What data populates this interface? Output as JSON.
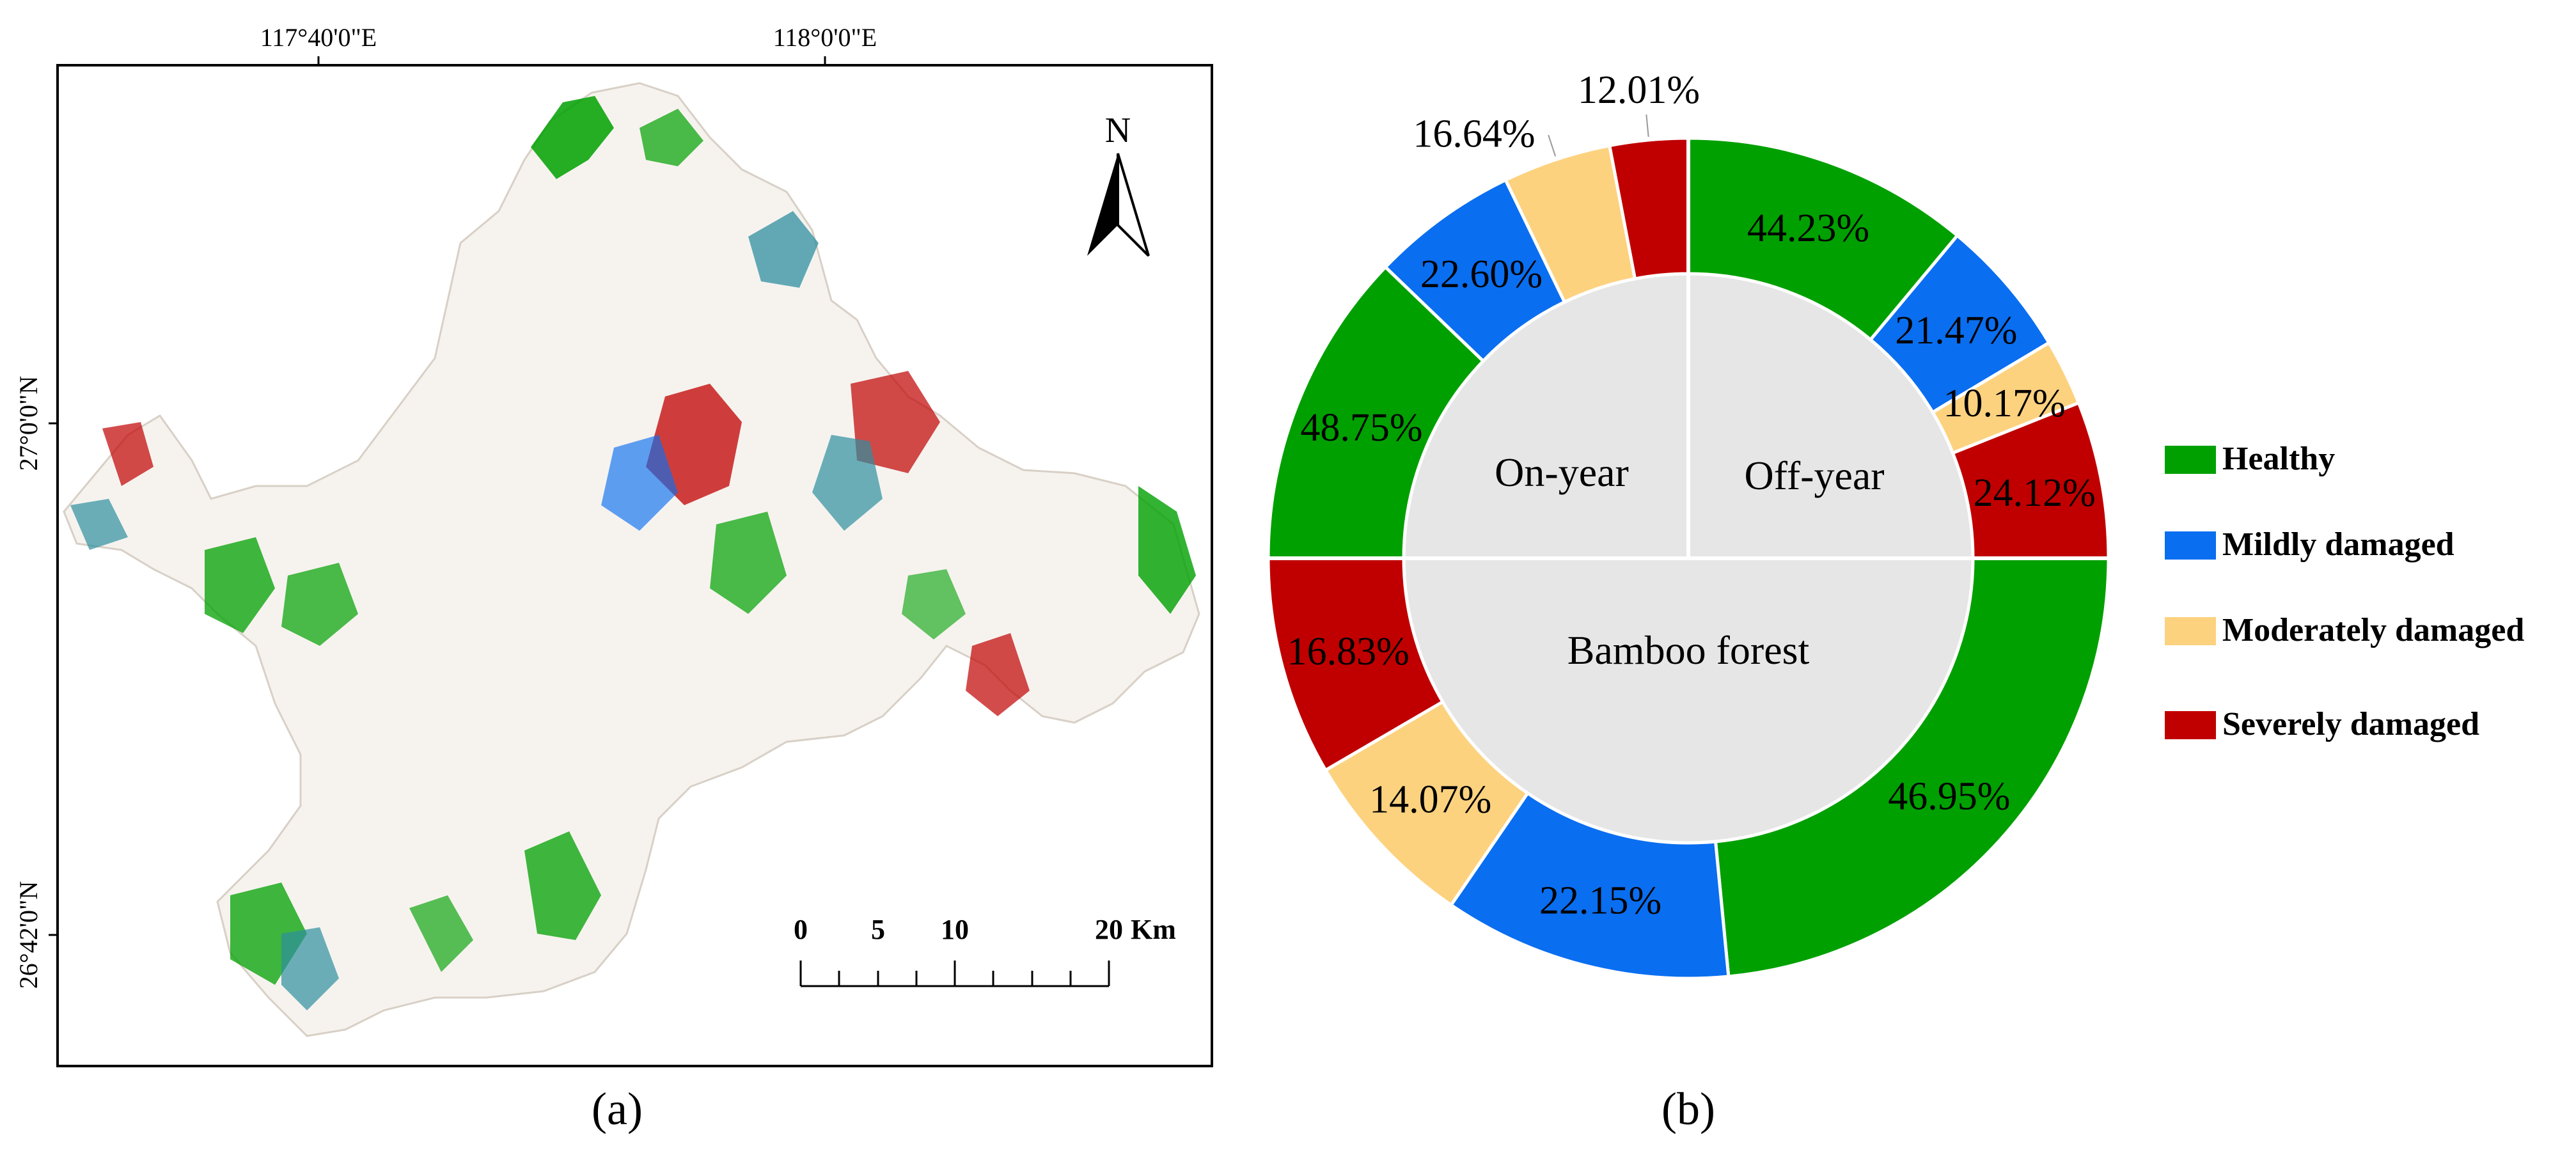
{
  "colors": {
    "healthy": "#00a000",
    "mild": "#0a6ef0",
    "moderate": "#fdd27f",
    "severe": "#c00000",
    "inner_fill": "#e6e6e6"
  },
  "map_panel": {
    "lon_labels": [
      "117°40'0\"E",
      "118°0'0\"E"
    ],
    "lat_labels": [
      "27°0'0\"N",
      "26°42'0\"N"
    ],
    "north_label": "N",
    "scale_labels": [
      "0",
      "5",
      "10",
      "20"
    ],
    "scale_unit": "Km",
    "caption": "(a)"
  },
  "chart_panel": {
    "caption": "(b)",
    "center_labels": {
      "on_year": "On-year",
      "off_year": "Off-year",
      "bamboo": "Bamboo forest"
    },
    "legend": [
      {
        "label": "Healthy",
        "color": "#00a000"
      },
      {
        "label": "Mildly damaged",
        "color": "#0a6ef0"
      },
      {
        "label": "Moderately damaged",
        "color": "#fdd27f"
      },
      {
        "label": "Severely damaged",
        "color": "#c00000"
      }
    ]
  },
  "chart_data": {
    "type": "pie",
    "categories": [
      "Healthy",
      "Mildly damaged",
      "Moderately damaged",
      "Severely damaged"
    ],
    "rings": [
      {
        "name": "Off-year",
        "values": [
          44.23,
          21.47,
          10.17,
          24.12
        ],
        "labels": [
          "44.23%",
          "21.47%",
          "10.17%",
          "24.12%"
        ]
      },
      {
        "name": "Bamboo forest",
        "values": [
          46.95,
          22.15,
          14.07,
          16.83
        ],
        "labels": [
          "46.95%",
          "22.15%",
          "14.07%",
          "16.83%"
        ]
      },
      {
        "name": "On-year",
        "values": [
          48.75,
          22.6,
          16.64,
          12.01
        ],
        "labels": [
          "48.75%",
          "22.60%",
          "16.64%",
          "12.01%"
        ]
      }
    ]
  }
}
